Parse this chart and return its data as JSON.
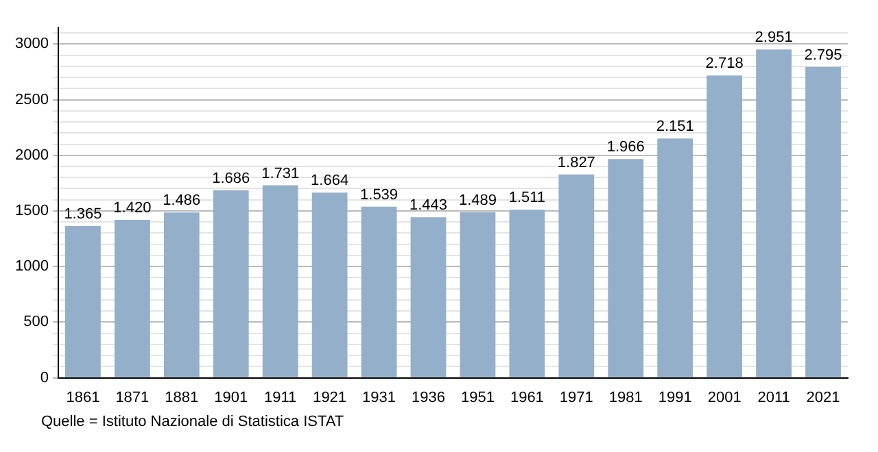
{
  "chart_data": {
    "type": "bar",
    "categories": [
      "1861",
      "1871",
      "1881",
      "1901",
      "1911",
      "1921",
      "1931",
      "1936",
      "1951",
      "1961",
      "1971",
      "1981",
      "1991",
      "2001",
      "2011",
      "2021"
    ],
    "values": [
      1365,
      1420,
      1486,
      1686,
      1731,
      1664,
      1539,
      1443,
      1489,
      1511,
      1827,
      1966,
      2151,
      2718,
      2951,
      2795
    ],
    "value_labels": [
      "1.365",
      "1.420",
      "1.486",
      "1.686",
      "1.731",
      "1.664",
      "1.539",
      "1.443",
      "1.489",
      "1.511",
      "1.827",
      "1.966",
      "2.151",
      "2.718",
      "2.951",
      "2.795"
    ],
    "color": "#94afc9",
    "ylim": [
      0,
      3150
    ],
    "yticks": [
      0,
      {
        "value": 100,
        "label": null
      },
      {
        "value": 200,
        "label": null
      },
      {
        "value": 300,
        "label": null
      },
      {
        "value": 400,
        "label": null
      },
      500,
      {
        "value": 600,
        "label": null
      },
      {
        "value": 700,
        "label": null
      },
      {
        "value": 800,
        "label": null
      },
      {
        "value": 900,
        "label": null
      },
      1000,
      {
        "value": 1100,
        "label": null
      },
      {
        "value": 1200,
        "label": null
      },
      {
        "value": 1300,
        "label": null
      },
      {
        "value": 1400,
        "label": null
      },
      1500,
      {
        "value": 1600,
        "label": null
      },
      {
        "value": 1700,
        "label": null
      },
      {
        "value": 1800,
        "label": null
      },
      {
        "value": 1900,
        "label": null
      },
      2000,
      {
        "value": 2100,
        "label": null
      },
      {
        "value": 2200,
        "label": null
      },
      {
        "value": 2300,
        "label": null
      },
      {
        "value": 2400,
        "label": null
      },
      2500,
      {
        "value": 2600,
        "label": null
      },
      {
        "value": 2700,
        "label": null
      },
      {
        "value": 2800,
        "label": null
      },
      {
        "value": 2900,
        "label": null
      },
      3000,
      {
        "value": 3100,
        "label": null
      }
    ],
    "grid": "y",
    "legend": false,
    "annotations": [
      "Quelle = Istituto Nazionale di Statistica ISTAT"
    ]
  }
}
